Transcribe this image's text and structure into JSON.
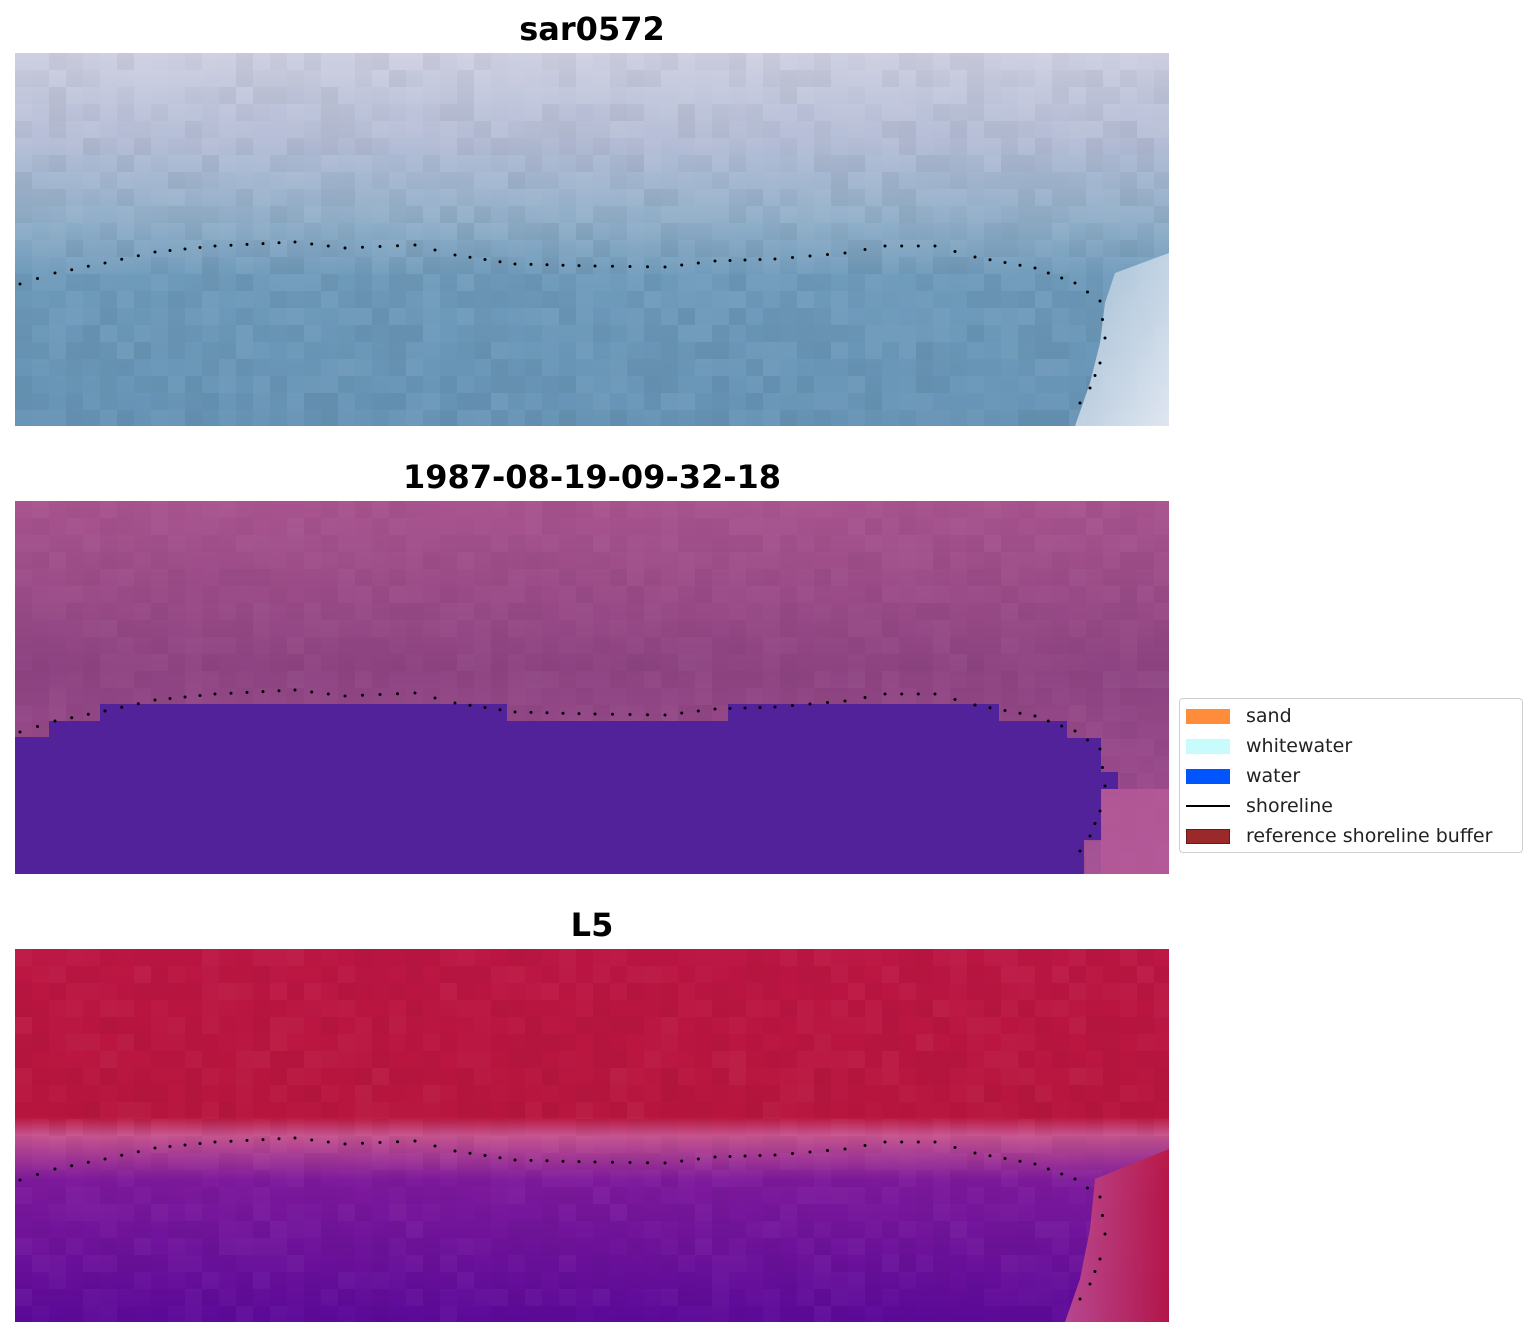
{
  "panels": [
    {
      "title": "sar0572"
    },
    {
      "title": "1987-08-19-09-32-18"
    },
    {
      "title": "L5"
    }
  ],
  "legend": {
    "items": [
      {
        "label": "sand",
        "color": "#ff8c3a",
        "kind": "patch"
      },
      {
        "label": "whitewater",
        "color": "#c8fbfb",
        "kind": "patch"
      },
      {
        "label": "water",
        "color": "#0055ff",
        "kind": "patch"
      },
      {
        "label": "shoreline",
        "color": "#000000",
        "kind": "line"
      },
      {
        "label": "reference shoreline buffer",
        "color": "#9a2a2a",
        "kind": "patch"
      }
    ]
  },
  "colors": {
    "rgb_water": "#6795b8",
    "rgb_land": "#c6c8dc",
    "classified_background": "#9c4a86",
    "classified_water": "#52229a",
    "classified_edge": "#c0609a",
    "index_land": "#bc1640",
    "index_water": "#5c0a9a",
    "index_transition": "#c65490",
    "shoreline_points": "#000000"
  }
}
